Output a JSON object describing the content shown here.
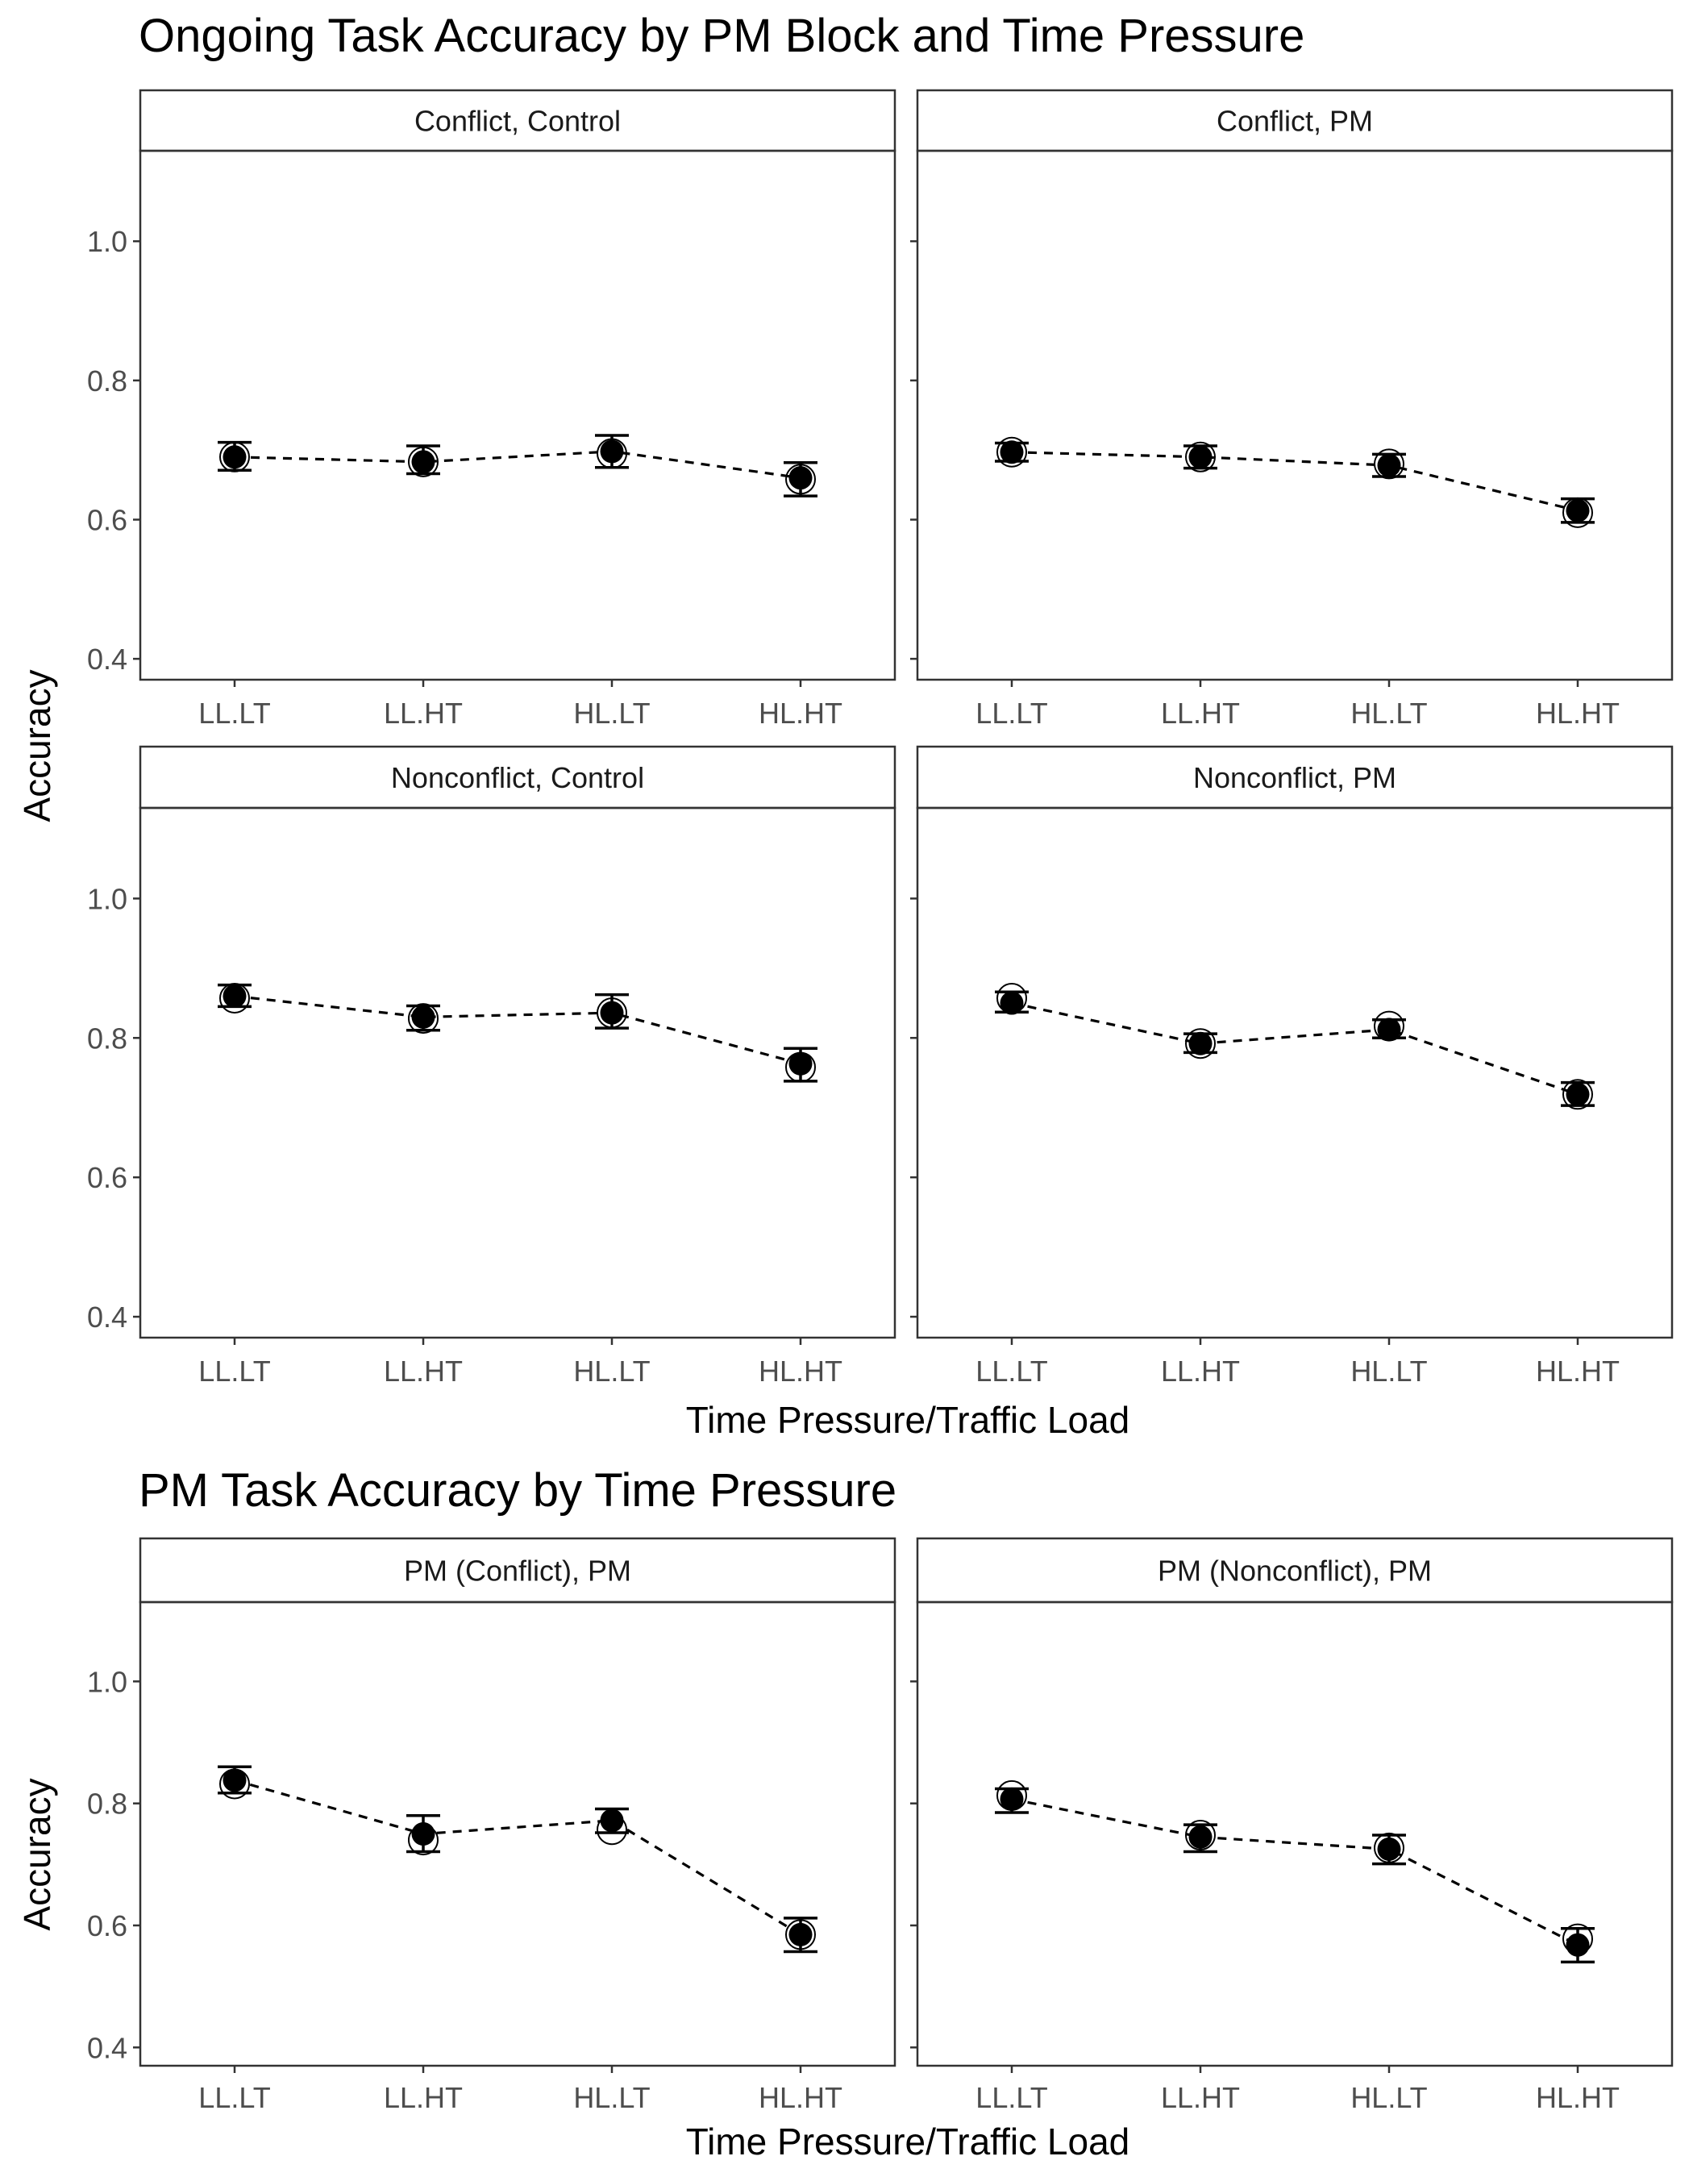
{
  "chart_data": [
    {
      "type": "scatter",
      "title": "Ongoing Task Accuracy by PM Block and Time Pressure",
      "xlabel": "Time Pressure/Traffic Load",
      "ylabel": "Accuracy",
      "categories": [
        "LL.LT",
        "LL.HT",
        "HL.LT",
        "HL.HT"
      ],
      "yticks": [
        "0.4",
        "0.6",
        "0.8",
        "1.0"
      ],
      "ylim": [
        0.37,
        1.13
      ],
      "grid": false,
      "legend": "none",
      "panels": [
        {
          "label": "Conflict, Control",
          "series": [
            {
              "marker": "filled",
              "values": [
                0.69,
                0.683,
                0.698,
                0.66
              ]
            },
            {
              "marker": "open",
              "values": [
                0.69,
                0.683,
                0.695,
                0.658
              ]
            }
          ],
          "error_bars": [
            [
              0.671,
              0.711
            ],
            [
              0.666,
              0.706
            ],
            [
              0.675,
              0.721
            ],
            [
              0.634,
              0.682
            ]
          ]
        },
        {
          "label": "Conflict, PM",
          "series": [
            {
              "marker": "filled",
              "values": [
                0.697,
                0.69,
                0.678,
                0.613
              ]
            },
            {
              "marker": "open",
              "values": [
                0.697,
                0.69,
                0.68,
                0.61
              ]
            }
          ],
          "error_bars": [
            [
              0.684,
              0.71
            ],
            [
              0.674,
              0.706
            ],
            [
              0.662,
              0.694
            ],
            [
              0.596,
              0.63
            ]
          ]
        },
        {
          "label": "Nonconflict, Control",
          "series": [
            {
              "marker": "filled",
              "values": [
                0.86,
                0.83,
                0.836,
                0.763
              ]
            },
            {
              "marker": "open",
              "values": [
                0.857,
                0.828,
                0.836,
                0.758
              ]
            }
          ],
          "error_bars": [
            [
              0.845,
              0.876
            ],
            [
              0.811,
              0.846
            ],
            [
              0.814,
              0.862
            ],
            [
              0.738,
              0.785
            ]
          ]
        },
        {
          "label": "Nonconflict, PM",
          "series": [
            {
              "marker": "filled",
              "values": [
                0.85,
                0.792,
                0.812,
                0.719
              ]
            },
            {
              "marker": "open",
              "values": [
                0.857,
                0.792,
                0.817,
                0.719
              ]
            }
          ],
          "error_bars": [
            [
              0.837,
              0.866
            ],
            [
              0.779,
              0.806
            ],
            [
              0.8,
              0.826
            ],
            [
              0.703,
              0.736
            ]
          ]
        }
      ]
    },
    {
      "type": "scatter",
      "title": "PM Task Accuracy by Time Pressure",
      "xlabel": "Time Pressure/Traffic Load",
      "ylabel": "Accuracy",
      "categories": [
        "LL.LT",
        "LL.HT",
        "HL.LT",
        "HL.HT"
      ],
      "yticks": [
        "0.4",
        "0.6",
        "0.8",
        "1.0"
      ],
      "ylim": [
        0.37,
        1.13
      ],
      "grid": false,
      "legend": "none",
      "panels": [
        {
          "label": "PM (Conflict), PM",
          "series": [
            {
              "marker": "filled",
              "values": [
                0.838,
                0.75,
                0.772,
                0.585
              ]
            },
            {
              "marker": "open",
              "values": [
                0.832,
                0.74,
                0.757,
                0.585
              ]
            }
          ],
          "error_bars": [
            [
              0.817,
              0.86
            ],
            [
              0.721,
              0.78
            ],
            [
              0.752,
              0.791
            ],
            [
              0.557,
              0.612
            ]
          ]
        },
        {
          "label": "PM (Nonconflict), PM",
          "series": [
            {
              "marker": "filled",
              "values": [
                0.807,
                0.745,
                0.725,
                0.568
              ]
            },
            {
              "marker": "open",
              "values": [
                0.813,
                0.748,
                0.727,
                0.578
              ]
            }
          ],
          "error_bars": [
            [
              0.785,
              0.824
            ],
            [
              0.721,
              0.765
            ],
            [
              0.701,
              0.748
            ],
            [
              0.54,
              0.595
            ]
          ]
        }
      ]
    }
  ]
}
